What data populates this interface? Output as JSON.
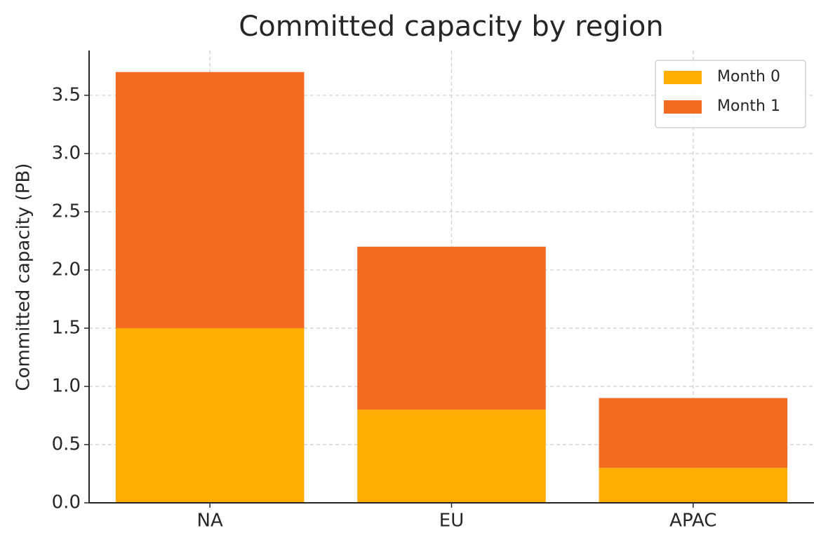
{
  "chart_data": {
    "type": "stacked-bar",
    "title": "Committed capacity by region",
    "y_label": "Committed capacity (PB)",
    "categories": [
      "NA",
      "EU",
      "APAC"
    ],
    "series": [
      {
        "name": "Month 0",
        "color": "#ffad00",
        "values": [
          1.5,
          0.8,
          0.3
        ]
      },
      {
        "name": "Month 1",
        "color": "#f26b21",
        "values": [
          2.2,
          1.4,
          0.6
        ]
      }
    ],
    "ylim": [
      0,
      3.885
    ],
    "yticks": [
      {
        "value": 0,
        "label": "0.0"
      },
      0.5,
      {
        "value": 1,
        "label": "1.0"
      },
      1.5,
      {
        "value": 2,
        "label": "2.0"
      },
      2.5,
      {
        "value": 3,
        "label": "3.0"
      },
      3.5
    ],
    "grid": true,
    "legend": "upper right"
  }
}
